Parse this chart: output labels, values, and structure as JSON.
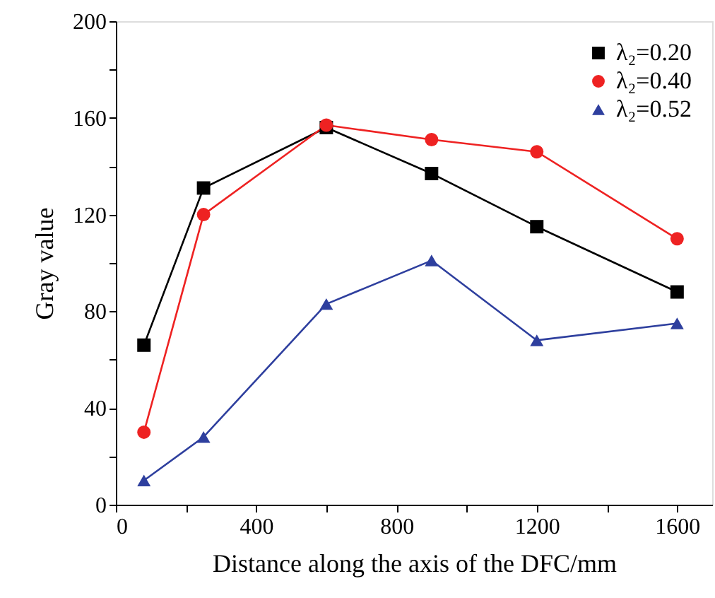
{
  "chart_data": {
    "type": "line",
    "xlabel": "Distance along the axis of the DFC/mm",
    "ylabel": "Gray value",
    "x": [
      80,
      250,
      600,
      900,
      1200,
      1600
    ],
    "series": [
      {
        "name": "λ₂=0.20",
        "color": "#000000",
        "marker": "square",
        "values": [
          66,
          131,
          156,
          137,
          115,
          88
        ]
      },
      {
        "name": "λ₂=0.40",
        "color": "#ee2222",
        "marker": "circle",
        "values": [
          30,
          120,
          157,
          151,
          146,
          110
        ]
      },
      {
        "name": "λ₂=0.52",
        "color": "#2e3f9e",
        "marker": "triangle",
        "values": [
          10,
          28,
          83,
          101,
          68,
          75
        ]
      }
    ],
    "xlim": [
      0,
      1700
    ],
    "xticks": [
      0,
      {
        "value": 200,
        "label": null
      },
      400,
      {
        "value": 600,
        "label": null
      },
      800,
      {
        "value": 1000,
        "label": null
      },
      1200,
      {
        "value": 1400,
        "label": null
      },
      1600
    ],
    "ylim": [
      0,
      200
    ],
    "yticks": [
      0,
      {
        "value": 20,
        "label": null
      },
      40,
      {
        "value": 60,
        "label": null
      },
      80,
      {
        "value": 100,
        "label": null
      },
      120,
      {
        "value": 140,
        "label": null
      },
      160,
      {
        "value": 180,
        "label": null
      },
      200
    ],
    "grid": false,
    "legend": "top right",
    "line_style": "solid"
  }
}
